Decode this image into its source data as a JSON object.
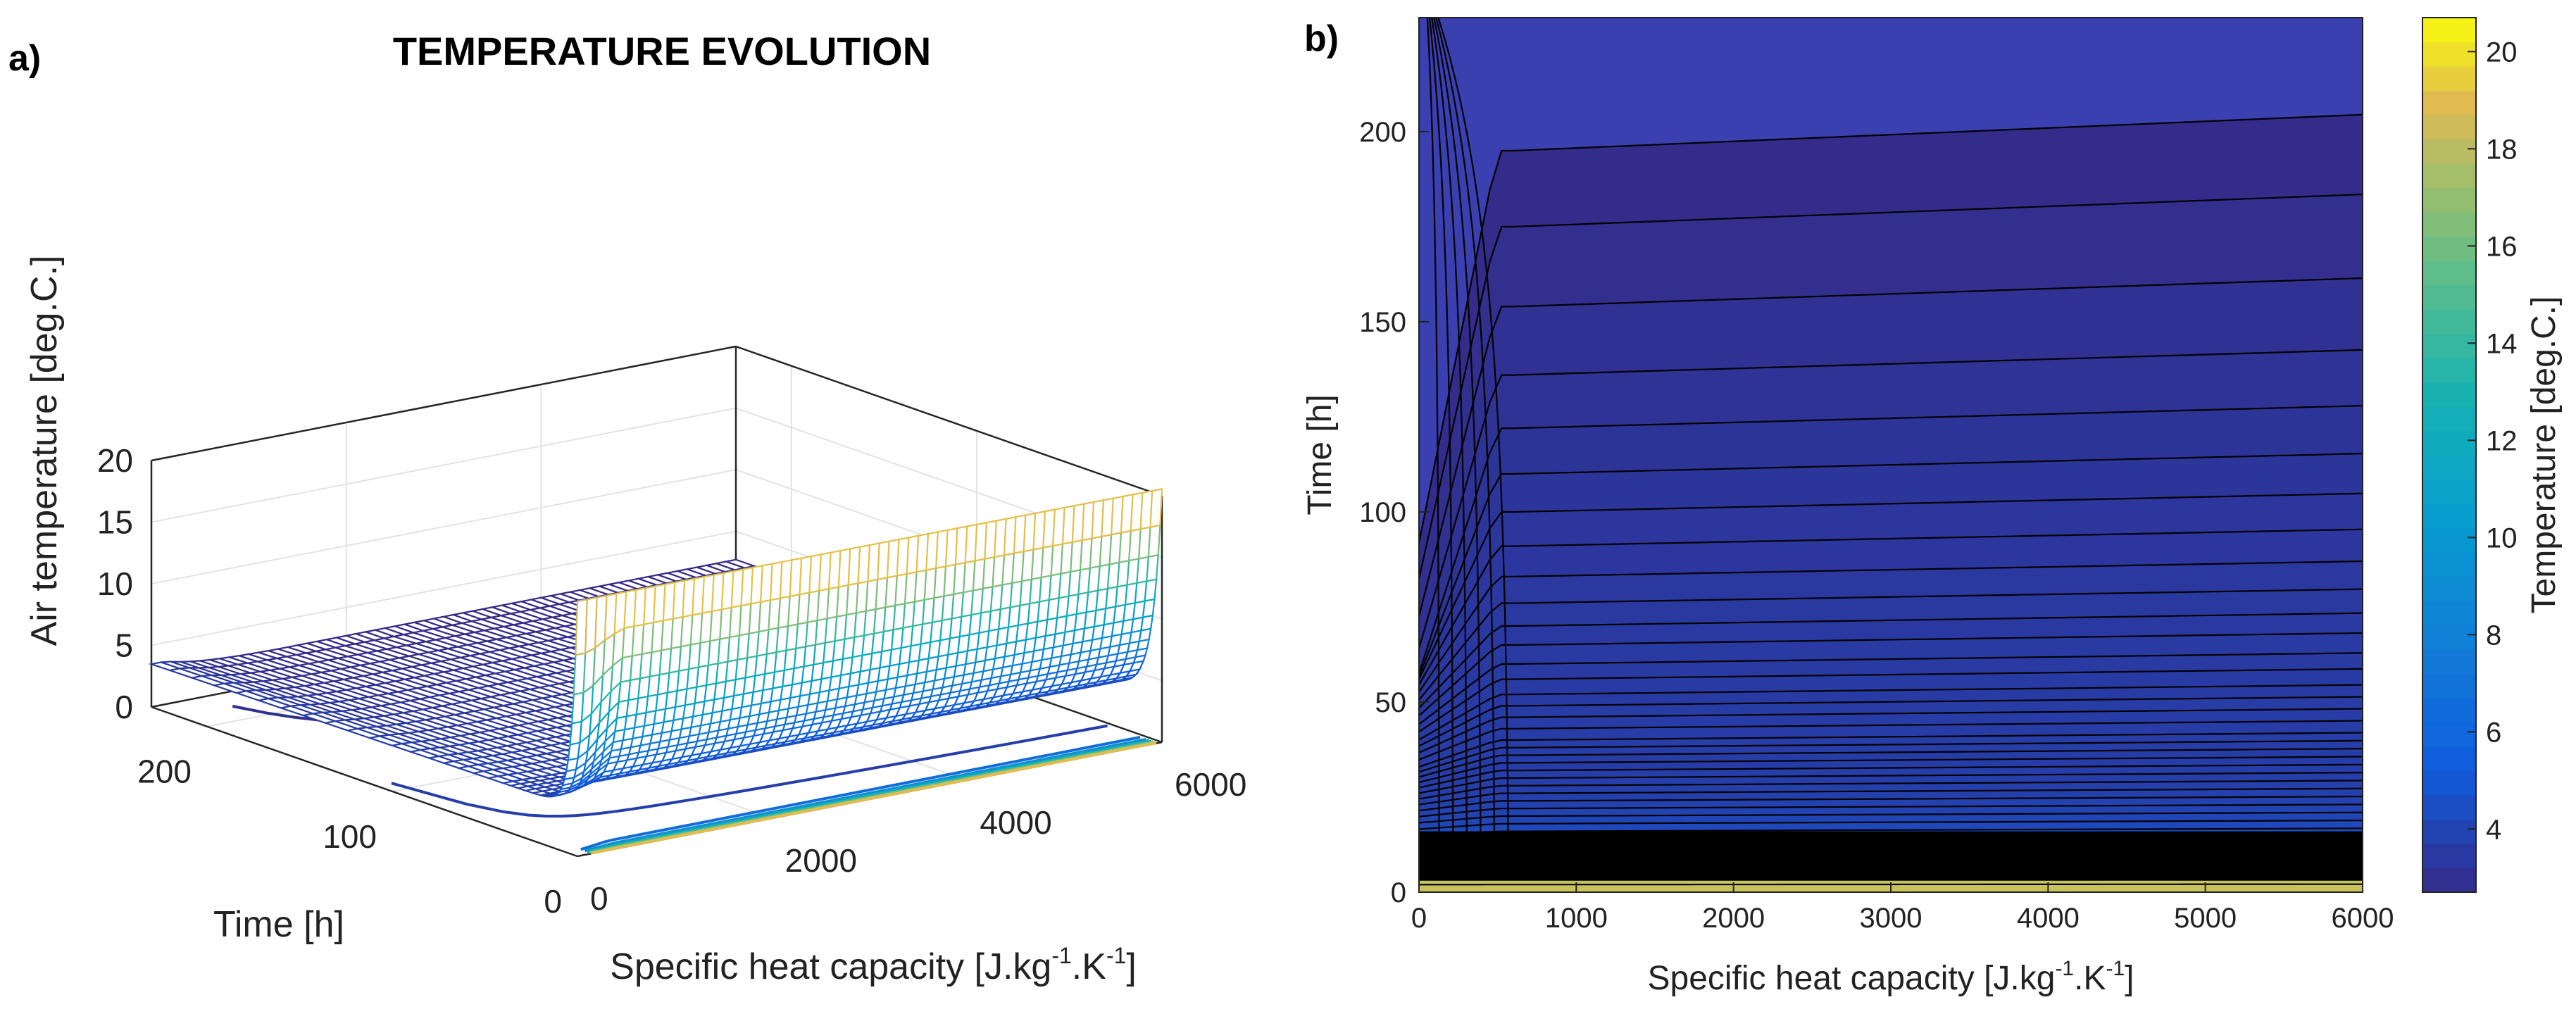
{
  "figure": {
    "panel_a_label": "a)",
    "panel_b_label": "b)"
  },
  "chart_data": [
    {
      "type": "surface",
      "title": "TEMPERATURE EVOLUTION",
      "xlabel": "Specific heat capacity [J.kg-1.K-1]",
      "xlabel_parts": {
        "main": "Specific heat capacity [J.kg",
        "sup1": "-1",
        "mid": ".K",
        "sup2": "-1",
        "end": "]"
      },
      "ylabel": "Time [h]",
      "zlabel": "Air temperature [deg.C.]",
      "xlim": [
        0,
        6000
      ],
      "ylim": [
        0,
        230
      ],
      "zlim": [
        0,
        20
      ],
      "xticks": [
        0,
        2000,
        4000,
        6000
      ],
      "yticks": [
        0,
        100,
        200
      ],
      "zticks": [
        0,
        5,
        10,
        15,
        20
      ],
      "grid": true,
      "colormap": "parula",
      "initial_temperature": 20.7,
      "final_temperature_range": [
        2.7,
        3.6
      ],
      "contour_projection": true
    },
    {
      "type": "contour",
      "xlabel": "Specific heat capacity [J.kg-1.K-1]",
      "xlabel_parts": {
        "main": "Specific heat capacity [J.kg",
        "sup1": "-1",
        "mid": ".K",
        "sup2": "-1",
        "end": "]"
      },
      "ylabel": "Time [h]",
      "xlim": [
        0,
        6000
      ],
      "ylim": [
        0,
        230
      ],
      "xticks": [
        0,
        1000,
        2000,
        3000,
        4000,
        5000,
        6000
      ],
      "yticks": [
        0,
        50,
        100,
        150,
        200
      ],
      "colorbar": {
        "label": "Temperature [deg.C.]",
        "range": [
          2.7,
          20.7
        ],
        "ticks": [
          4,
          6,
          8,
          10,
          12,
          14,
          16,
          18,
          20
        ]
      },
      "contour_levels_time_h": [
        2,
        5,
        8,
        11,
        14,
        16,
        18,
        20,
        22,
        24,
        26,
        28,
        30,
        32,
        34,
        36,
        38,
        40,
        43,
        46,
        49,
        52,
        56,
        60,
        65,
        70,
        76,
        83,
        91,
        100,
        110,
        122,
        136,
        154,
        175,
        195
      ],
      "black_band_time_h": [
        3,
        16
      ]
    }
  ]
}
